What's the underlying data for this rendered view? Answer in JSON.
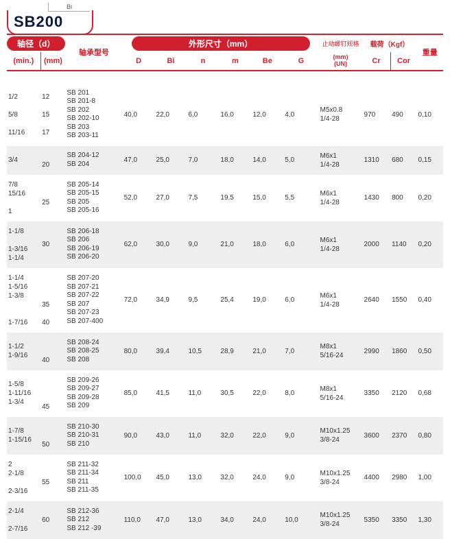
{
  "fragLabel": "Bi",
  "title": "SB200",
  "headers": {
    "shaft": "轴径（d）",
    "model": "轴承型号",
    "dims": "外形尺寸（mm）",
    "thread": "止动螺钉规格",
    "load": "载荷（Kgf）",
    "weight": "重量",
    "min": "(min.)",
    "mm": "(mm)",
    "unit": "(mm)\n(UN)",
    "D": "D",
    "Bi": "Bi",
    "n": "n",
    "m": "m",
    "Be": "Be",
    "G": "G",
    "Cr": "Cr",
    "Cor": "Cor"
  },
  "cols": {
    "min": 46,
    "mm": 34,
    "model": 78,
    "D": 44,
    "Bi": 44,
    "n": 44,
    "m": 44,
    "Be": 44,
    "G": 48,
    "thread": 60,
    "Cr": 38,
    "Cor": 36,
    "wt": 36
  },
  "rows": [
    {
      "band": 0,
      "min": "1/2\n\n5/8\n\n11/16",
      "mm": "12\n\n15\n\n17",
      "model": "SB 201\nSB 201-8\nSB 202\nSB 202-10\nSB 203\nSB 203-11",
      "D": "40,0",
      "Bi": "22,0",
      "n": "6,0",
      "m": "16,0",
      "Be": "12,0",
      "G": "4,0",
      "thread": "M5x0.8\n1/4-28",
      "Cr": "970",
      "Cor": "490",
      "wt": "0,10"
    },
    {
      "band": 1,
      "min": "3/4",
      "mm": "\n20",
      "model": "SB 204-12\nSB 204",
      "D": "47,0",
      "Bi": "25,0",
      "n": "7,0",
      "m": "18,0",
      "Be": "14,0",
      "G": "5,0",
      "thread": "M6x1\n1/4-28",
      "Cr": "1310",
      "Cor": "680",
      "wt": "0,15"
    },
    {
      "band": 0,
      "min": "7/8\n15/16\n\n1",
      "mm": "\n25",
      "model": "SB 205-14\nSB 205-15\nSB 205\nSB 205-16",
      "D": "52,0",
      "Bi": "27,0",
      "n": "7,5",
      "m": "19,5",
      "Be": "15,0",
      "G": "5,5",
      "thread": "M6x1\n1/4-28",
      "Cr": "1430",
      "Cor": "800",
      "wt": "0,20"
    },
    {
      "band": 1,
      "min": "1-1/8\n\n1-3/16\n1-1/4",
      "mm": "30",
      "model": "SB 206-18\nSB 206\nSB 206-19\nSB 206-20",
      "D": "62,0",
      "Bi": "30,0",
      "n": "9,0",
      "m": "21,0",
      "Be": "18,0",
      "G": "6,0",
      "thread": "M6x1\n1/4-28",
      "Cr": "2000",
      "Cor": "1140",
      "wt": "0,20"
    },
    {
      "band": 0,
      "min": "1-1/4\n1-5/16\n1-3/8\n\n\n1-7/16",
      "mm": "\n\n\n35\n\n40",
      "model": "SB 207-20\nSB 207-21\nSB 207-22\nSB 207\nSB 207-23\nSB 207-400",
      "D": "72,0",
      "Bi": "34,9",
      "n": "9,5",
      "m": "25,4",
      "Be": "19,0",
      "G": "6,0",
      "thread": "M6x1\n1/4-28",
      "Cr": "2640",
      "Cor": "1550",
      "wt": "0,40"
    },
    {
      "band": 1,
      "min": "1-1/2\n1-9/16",
      "mm": "\n\n40",
      "model": "SB 208-24\nSB 208-25\nSB 208",
      "D": "80,0",
      "Bi": "39,4",
      "n": "10,5",
      "m": "28,9",
      "Be": "21,0",
      "G": "7,0",
      "thread": "M8x1\n5/16-24",
      "Cr": "2990",
      "Cor": "1860",
      "wt": "0,50"
    },
    {
      "band": 0,
      "min": "1-5/8\n1-11/16\n1-3/4",
      "mm": "\n\n\n45",
      "model": "SB 209-26\nSB 209-27\nSB 209-28\nSB 209",
      "D": "85,0",
      "Bi": "41,5",
      "n": "11,0",
      "m": "30,5",
      "Be": "22,0",
      "G": "8,0",
      "thread": "M8x1\n5/16-24",
      "Cr": "3350",
      "Cor": "2120",
      "wt": "0,68"
    },
    {
      "band": 1,
      "min": "1-7/8\n1-15/16",
      "mm": "\n\n50",
      "model": "SB 210-30\nSB 210-31\nSB 210",
      "D": "90,0",
      "Bi": "43,0",
      "n": "11,0",
      "m": "32,0",
      "Be": "22,0",
      "G": "9,0",
      "thread": "M10x1.25\n3/8-24",
      "Cr": "3600",
      "Cor": "2370",
      "wt": "0,80"
    },
    {
      "band": 0,
      "min": "2\n2-1/8\n\n2-3/16",
      "mm": "\n55",
      "model": "SB 211-32\nSB 211-34\nSB 211\nSB 211-35",
      "D": "100,0",
      "Bi": "45,0",
      "n": "13,0",
      "m": "32,0",
      "Be": "24,0",
      "G": "9,0",
      "thread": "M10x1.25\n3/8-24",
      "Cr": "4400",
      "Cor": "2980",
      "wt": "1,00"
    },
    {
      "band": 1,
      "min": "2-1/4\n\n2-7/16",
      "mm": "60",
      "model": "SB 212-36\nSB 212\nSB 212 -39",
      "D": "110,0",
      "Bi": "47,0",
      "n": "13,0",
      "m": "34,0",
      "Be": "24,0",
      "G": "10,0",
      "thread": "M10x1.25\n3/8-24",
      "Cr": "5350",
      "Cor": "3350",
      "wt": "1,30"
    }
  ]
}
